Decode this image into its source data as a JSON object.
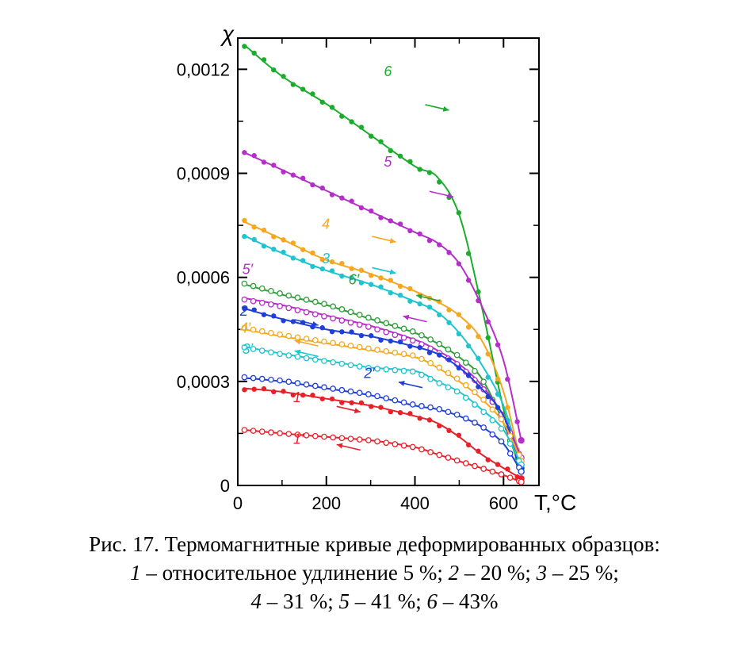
{
  "chart_data": {
    "type": "line",
    "xlabel": "T,°C",
    "ylabel": "χ",
    "xlim": [
      0,
      680
    ],
    "ylim": [
      0,
      0.00129
    ],
    "x_ticks": [
      "0",
      "200",
      "400",
      "600"
    ],
    "y_ticks": [
      "0",
      "0,0003",
      "0,0006",
      "0,0009",
      "0,0012"
    ],
    "x_tick_values": [
      0,
      200,
      400,
      600
    ],
    "y_tick_values": [
      0,
      0.0003,
      0.0006,
      0.0009,
      0.0012
    ],
    "series": [
      {
        "name": "6",
        "label_at": [
          330,
          0.00118
        ],
        "arrow": "right",
        "arrow_at": [
          450,
          0.00109
        ],
        "color": "#1aad2b",
        "filled": true,
        "x": [
          15,
          100,
          200,
          300,
          400,
          450,
          500,
          550,
          600,
          640
        ],
        "y": [
          0.00127,
          0.00118,
          0.0011,
          0.00101,
          0.00092,
          0.00089,
          0.00078,
          0.00052,
          0.00022,
          4e-05
        ]
      },
      {
        "name": "5",
        "label_at": [
          330,
          0.00092
        ],
        "arrow": "right",
        "arrow_at": [
          460,
          0.00084
        ],
        "color": "#b52ec9",
        "filled": true,
        "x": [
          15,
          100,
          200,
          300,
          400,
          450,
          500,
          550,
          600,
          640
        ],
        "y": [
          0.00096,
          0.00091,
          0.00085,
          0.00079,
          0.00073,
          0.0007,
          0.00064,
          0.00052,
          0.00036,
          0.00013
        ]
      },
      {
        "name": "4",
        "label_at": [
          190,
          0.00074
        ],
        "arrow": "right",
        "arrow_at": [
          330,
          0.00071
        ],
        "color": "#f5a81f",
        "filled": true,
        "x": [
          15,
          100,
          200,
          300,
          400,
          450,
          500,
          550,
          600,
          640
        ],
        "y": [
          0.00076,
          0.00071,
          0.00065,
          0.00061,
          0.00056,
          0.00053,
          0.00049,
          0.00042,
          0.00027,
          6e-05
        ]
      },
      {
        "name": "3",
        "label_at": [
          190,
          0.00064
        ],
        "arrow": "right",
        "arrow_at": [
          330,
          0.00062
        ],
        "color": "#1fc4cf",
        "filled": true,
        "x": [
          15,
          100,
          200,
          300,
          400,
          450,
          500,
          550,
          600,
          640
        ],
        "y": [
          0.00072,
          0.00067,
          0.00062,
          0.00058,
          0.00053,
          0.0005,
          0.00044,
          0.00035,
          0.00023,
          6e-05
        ]
      },
      {
        "name": "6′",
        "label_at": [
          250,
          0.00058
        ],
        "arrow": "left",
        "arrow_at": [
          430,
          0.00054
        ],
        "color": "#2e9e3a",
        "filled": false,
        "x": [
          15,
          100,
          200,
          300,
          400,
          450,
          500,
          550,
          600,
          640
        ],
        "y": [
          0.00058,
          0.00055,
          0.00052,
          0.00048,
          0.00044,
          0.00041,
          0.00037,
          0.00031,
          0.00018,
          4e-05
        ]
      },
      {
        "name": "5′",
        "label_at": [
          10,
          0.00061
        ],
        "arrow": "left",
        "arrow_at": [
          400,
          0.00048
        ],
        "color": "#b52ec9",
        "filled": false,
        "x": [
          15,
          100,
          200,
          300,
          400,
          450,
          500,
          550,
          600,
          640
        ],
        "y": [
          0.00054,
          0.00052,
          0.00049,
          0.00046,
          0.00042,
          0.00039,
          0.00035,
          0.00029,
          0.0002,
          8e-05
        ]
      },
      {
        "name": "2",
        "label_at": [
          5,
          0.00049
        ],
        "arrow": "right",
        "arrow_at": [
          155,
          0.00047
        ],
        "color": "#1f3fd8",
        "filled": true,
        "x": [
          15,
          100,
          200,
          300,
          400,
          450,
          500,
          550,
          600,
          640
        ],
        "y": [
          0.00051,
          0.00048,
          0.00045,
          0.00043,
          0.0004,
          0.00038,
          0.00034,
          0.00028,
          0.0002,
          5e-05
        ]
      },
      {
        "name": "4′",
        "label_at": [
          5,
          0.00044
        ],
        "arrow": "left",
        "arrow_at": [
          155,
          0.00041
        ],
        "color": "#f5a81f",
        "filled": false,
        "x": [
          15,
          100,
          200,
          300,
          400,
          450,
          500,
          550,
          600,
          640
        ],
        "y": [
          0.00045,
          0.00043,
          0.00041,
          0.00039,
          0.00037,
          0.00034,
          0.0003,
          0.00025,
          0.00018,
          7e-05
        ]
      },
      {
        "name": "3′",
        "label_at": [
          10,
          0.00038
        ],
        "arrow": "left",
        "arrow_at": [
          155,
          0.00038
        ],
        "color": "#1fc4cf",
        "filled": false,
        "x": [
          15,
          100,
          200,
          300,
          400,
          450,
          500,
          550,
          600,
          640
        ],
        "y": [
          0.0004,
          0.00038,
          0.00036,
          0.00034,
          0.00033,
          0.0003,
          0.00027,
          0.00022,
          0.00016,
          6e-05
        ]
      },
      {
        "name": "2′",
        "label_at": [
          285,
          0.00031
        ],
        "arrow": "left",
        "arrow_at": [
          390,
          0.00029
        ],
        "color": "#1f3fd8",
        "filled": false,
        "x": [
          15,
          100,
          200,
          300,
          400,
          450,
          500,
          550,
          600,
          640
        ],
        "y": [
          0.00031,
          0.0003,
          0.00028,
          0.00026,
          0.00023,
          0.00022,
          0.0002,
          0.00017,
          0.00012,
          4e-05
        ]
      },
      {
        "name": "1",
        "label_at": [
          125,
          0.00024
        ],
        "arrow": "right",
        "arrow_at": [
          250,
          0.00022
        ],
        "color": "#e8202a",
        "filled": true,
        "x": [
          15,
          100,
          200,
          300,
          400,
          450,
          500,
          550,
          600,
          640
        ],
        "y": [
          0.00028,
          0.00027,
          0.00025,
          0.00023,
          0.0002,
          0.00018,
          0.00014,
          9e-05,
          5e-05,
          2e-05
        ]
      },
      {
        "name": "1′",
        "label_at": [
          125,
          0.00012
        ],
        "arrow": "left",
        "arrow_at": [
          250,
          0.00011
        ],
        "color": "#e8202a",
        "filled": false,
        "x": [
          15,
          100,
          200,
          300,
          400,
          450,
          500,
          550,
          600,
          640
        ],
        "y": [
          0.00016,
          0.00015,
          0.00014,
          0.00013,
          0.00011,
          9e-05,
          7e-05,
          5e-05,
          3e-05,
          1e-05
        ]
      }
    ]
  },
  "caption": {
    "line1": "Рис. 17. Термомагнитные кривые деформированных образцов:",
    "line2_num1": "1",
    "line2_text1": " – относительное удлинение 5 %; ",
    "line2_num2": "2",
    "line2_text2": " – 20 %; ",
    "line2_num3": "3",
    "line2_text3": " – 25 %;",
    "line3_num4": "4",
    "line3_text4": " – 31 %; ",
    "line3_num5": "5",
    "line3_text5": " – 41 %; ",
    "line3_num6": "6",
    "line3_text6": " – 43%"
  }
}
